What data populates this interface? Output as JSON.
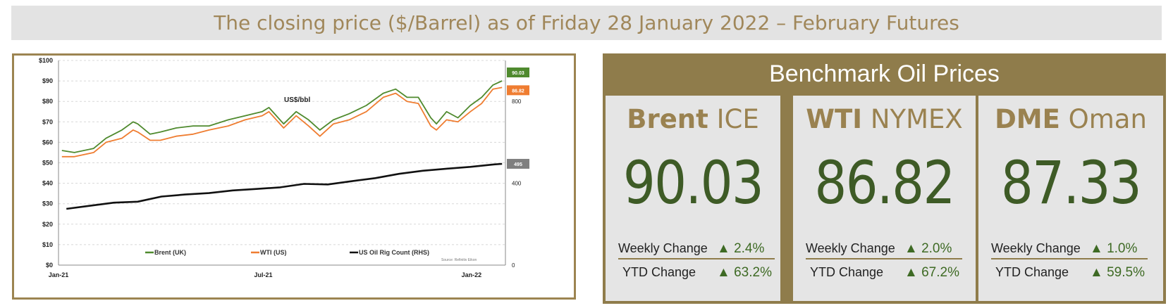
{
  "page_title": "The closing price ($/Barrel) as of Friday 28 January 2022 – February Futures",
  "benchmark": {
    "title": "Benchmark Oil Prices",
    "panels": [
      {
        "name_bold": "Brent",
        "name_rest": "ICE",
        "price": "90.03",
        "weekly_label": "Weekly Change",
        "weekly_value": "▲ 2.4%",
        "ytd_label": "YTD Change",
        "ytd_value": "▲ 63.2%"
      },
      {
        "name_bold": "WTI",
        "name_rest": "NYMEX",
        "price": "86.82",
        "weekly_label": "Weekly Change",
        "weekly_value": "▲ 2.0%",
        "ytd_label": "YTD Change",
        "ytd_value": "▲ 67.2%"
      },
      {
        "name_bold": "DME",
        "name_rest": "Oman",
        "price": "87.33",
        "weekly_label": "Weekly Change",
        "weekly_value": "▲ 1.0%",
        "ytd_label": "YTD Change",
        "ytd_value": "▲ 59.5%"
      }
    ],
    "colors": {
      "header": "#8f7c4b",
      "panel": "#e5e5e5",
      "price": "#3e5b26",
      "change": "#3e6a24"
    }
  },
  "chart_data": {
    "type": "line",
    "annotation": "US$/bbl",
    "source_note": "Source: Refinitiv Eikon",
    "x_tick_labels": [
      "Jan-21",
      "Jul-21",
      "Jan-22"
    ],
    "y_left": {
      "ticks": [
        "$0",
        "$10",
        "$20",
        "$30",
        "$40",
        "$50",
        "$60",
        "$70",
        "$80",
        "$90",
        "$100"
      ],
      "range": [
        0,
        100
      ]
    },
    "y_right": {
      "ticks": [
        "0",
        "400",
        "800"
      ],
      "range": [
        0,
        1000
      ]
    },
    "grid": true,
    "legend_position": "bottom",
    "end_labels": [
      {
        "text": "90.03",
        "color": "#4f8a2e"
      },
      {
        "text": "86.82",
        "color": "#ef7d31"
      },
      {
        "text": "495",
        "color": "#7f7f7f"
      }
    ],
    "series": [
      {
        "name": "Brent (UK)",
        "color": "#4f8a2e",
        "axis": "left",
        "x": [
          "2021-01-04",
          "2021-01-15",
          "2021-02-01",
          "2021-02-12",
          "2021-02-26",
          "2021-03-08",
          "2021-03-12",
          "2021-03-23",
          "2021-04-01",
          "2021-04-15",
          "2021-04-30",
          "2021-05-14",
          "2021-05-31",
          "2021-06-15",
          "2021-06-30",
          "2021-07-06",
          "2021-07-19",
          "2021-07-30",
          "2021-08-10",
          "2021-08-20",
          "2021-09-01",
          "2021-09-15",
          "2021-09-30",
          "2021-10-15",
          "2021-10-26",
          "2021-11-05",
          "2021-11-15",
          "2021-11-26",
          "2021-12-01",
          "2021-12-10",
          "2021-12-20",
          "2021-12-31",
          "2022-01-10",
          "2022-01-20",
          "2022-01-28"
        ],
        "y": [
          56,
          55,
          57,
          62,
          66,
          70,
          69,
          64,
          65,
          67,
          68,
          68,
          71,
          73,
          75,
          77,
          69,
          75,
          71,
          66,
          71,
          74,
          78,
          84,
          86,
          82,
          82,
          72,
          69,
          75,
          72,
          78,
          82,
          88,
          90.03
        ]
      },
      {
        "name": "WTI (US)",
        "color": "#ef7d31",
        "axis": "left",
        "x": [
          "2021-01-04",
          "2021-01-15",
          "2021-02-01",
          "2021-02-12",
          "2021-02-26",
          "2021-03-08",
          "2021-03-12",
          "2021-03-23",
          "2021-04-01",
          "2021-04-15",
          "2021-04-30",
          "2021-05-14",
          "2021-05-31",
          "2021-06-15",
          "2021-06-30",
          "2021-07-06",
          "2021-07-19",
          "2021-07-30",
          "2021-08-10",
          "2021-08-20",
          "2021-09-01",
          "2021-09-15",
          "2021-09-30",
          "2021-10-15",
          "2021-10-26",
          "2021-11-05",
          "2021-11-15",
          "2021-11-26",
          "2021-12-01",
          "2021-12-10",
          "2021-12-20",
          "2021-12-31",
          "2022-01-10",
          "2022-01-20",
          "2022-01-28"
        ],
        "y": [
          53,
          53,
          55,
          60,
          62,
          66,
          65,
          61,
          61,
          63,
          64,
          66,
          68,
          71,
          73,
          75,
          67,
          73,
          68,
          63,
          69,
          71,
          75,
          82,
          84,
          80,
          79,
          68,
          66,
          71,
          70,
          75,
          79,
          86,
          86.82
        ]
      },
      {
        "name": "US Oil Rig Count (RHS)",
        "color": "#111111",
        "axis": "right",
        "x": [
          "2021-01-08",
          "2021-01-29",
          "2021-02-19",
          "2021-03-12",
          "2021-04-02",
          "2021-04-23",
          "2021-05-14",
          "2021-06-04",
          "2021-06-25",
          "2021-07-16",
          "2021-08-06",
          "2021-08-27",
          "2021-09-17",
          "2021-10-08",
          "2021-10-29",
          "2021-11-19",
          "2021-12-10",
          "2021-12-31",
          "2022-01-21",
          "2022-01-28"
        ],
        "y": [
          275,
          290,
          305,
          310,
          335,
          345,
          352,
          365,
          372,
          380,
          397,
          394,
          410,
          425,
          446,
          461,
          471,
          480,
          492,
          495
        ]
      }
    ]
  }
}
